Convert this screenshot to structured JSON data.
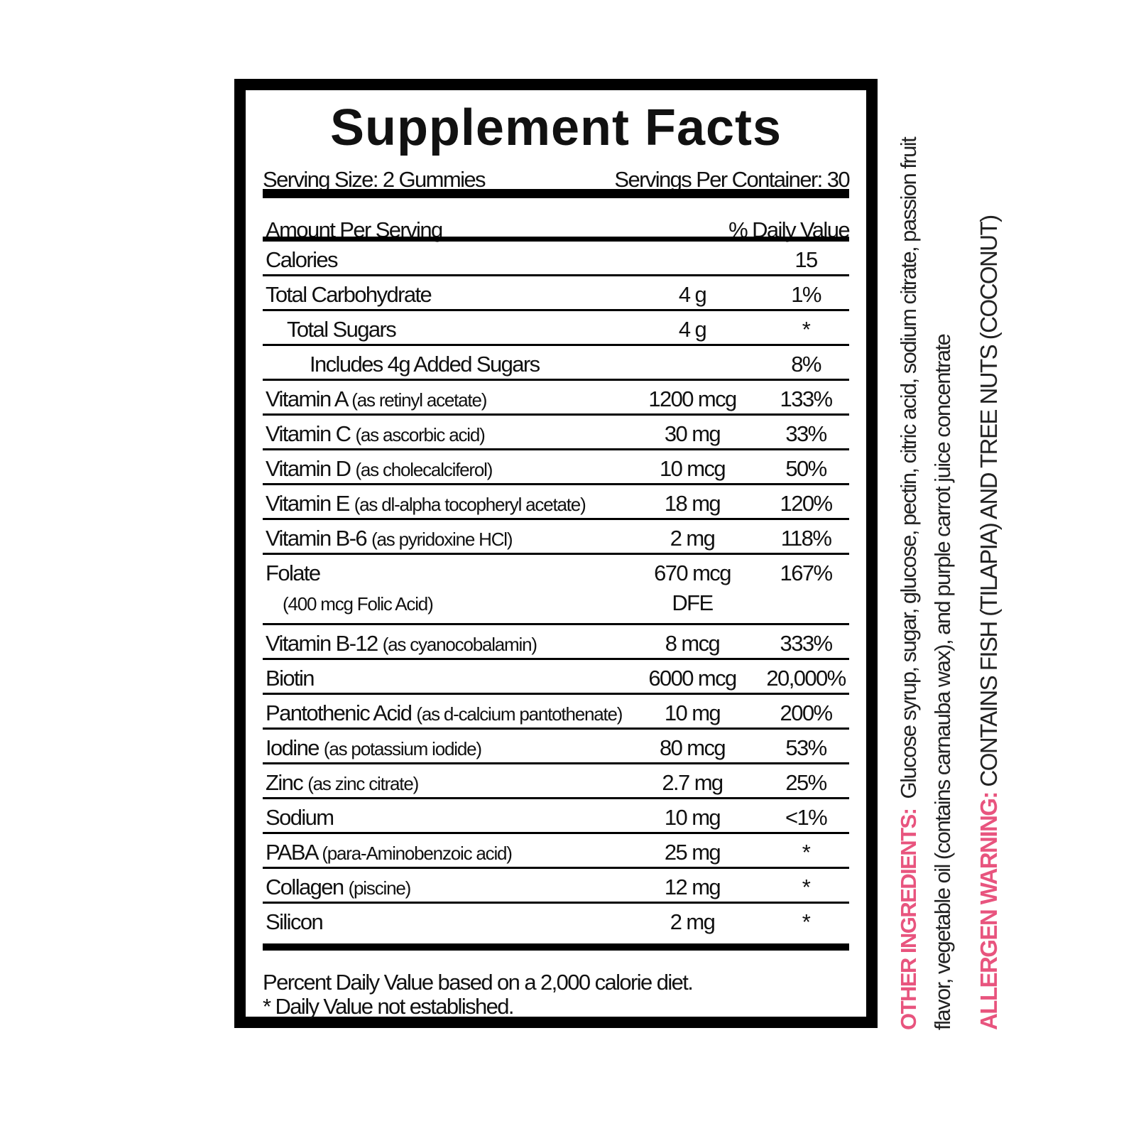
{
  "title": "Supplement Facts",
  "serving_size": "Serving Size: 2 Gummies",
  "servings_per_container": "Servings Per Container: 30",
  "header": {
    "amount": "Amount Per Serving",
    "dv": "% Daily Value"
  },
  "rows": [
    {
      "name": "Calories",
      "sub": "",
      "amount": "",
      "dv": "15"
    },
    {
      "name": "Total Carbohydrate",
      "sub": "",
      "amount": "4 g",
      "dv": "1%"
    },
    {
      "name": "Total Sugars",
      "sub": "",
      "amount": "4 g",
      "dv": "*"
    },
    {
      "name": "Includes 4g Added Sugars",
      "sub": "",
      "amount": "",
      "dv": "8%"
    },
    {
      "name": "Vitamin A",
      "sub": "(as retinyl acetate)",
      "amount": "1200 mcg",
      "dv": "133%"
    },
    {
      "name": "Vitamin C",
      "sub": "(as ascorbic acid)",
      "amount": "30 mg",
      "dv": "33%"
    },
    {
      "name": "Vitamin D",
      "sub": "(as cholecalciferol)",
      "amount": "10 mcg",
      "dv": "50%"
    },
    {
      "name": "Vitamin E",
      "sub": "(as dl-alpha tocopheryl acetate)",
      "amount": "18 mg",
      "dv": "120%"
    },
    {
      "name": "Vitamin B-6",
      "sub": "(as pyridoxine HCl)",
      "amount": "2 mg",
      "dv": "118%"
    },
    {
      "name": "Folate",
      "sub": "(400 mcg Folic Acid)",
      "amount": "670 mcg",
      "amount2": "DFE",
      "dv": "167%"
    },
    {
      "name": "Vitamin B-12",
      "sub": "(as cyanocobalamin)",
      "amount": "8 mcg",
      "dv": "333%"
    },
    {
      "name": "Biotin",
      "sub": "",
      "amount": "6000 mcg",
      "dv": "20,000%"
    },
    {
      "name": "Pantothenic Acid",
      "sub": "(as d-calcium pantothenate)",
      "amount": "10 mg",
      "dv": "200%"
    },
    {
      "name": "Iodine",
      "sub": "(as potassium iodide)",
      "amount": "80 mcg",
      "dv": "53%"
    },
    {
      "name": "Zinc",
      "sub": "(as zinc citrate)",
      "amount": "2.7 mg",
      "dv": "25%"
    },
    {
      "name": "Sodium",
      "sub": "",
      "amount": "10 mg",
      "dv": "<1%"
    },
    {
      "name": "PABA",
      "sub": "(para-Aminobenzoic acid)",
      "amount": "25 mg",
      "dv": "*"
    },
    {
      "name": "Collagen",
      "sub": "(piscine)",
      "amount": "12 mg",
      "dv": "*"
    },
    {
      "name": "Silicon",
      "sub": "",
      "amount": "2 mg",
      "dv": "*"
    }
  ],
  "footnotes": [
    "Percent Daily Value based on a 2,000 calorie diet.",
    "* Daily Value not established."
  ],
  "other_ingredients": {
    "label": "OTHER INGREDIENTS:",
    "line1": "Glucose syrup, sugar, glucose, pectin, citric acid, sodium citrate, passion fruit",
    "line2": "flavor, vegetable oil (contains carnauba wax), and purple carrot juice concentrate"
  },
  "allergen": {
    "label": "ALLERGEN WARNING:",
    "text": "CONTAINS FISH (TILAPIA) AND TREE NUTS (COCONUT)"
  },
  "colors": {
    "accent": "#e8547e",
    "border": "#000000"
  }
}
